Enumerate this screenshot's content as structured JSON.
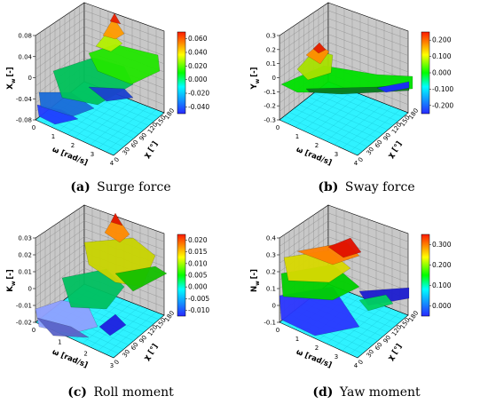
{
  "chart_data": [
    {
      "type": "surface3d",
      "label": "(a)",
      "caption": "Surge force",
      "zlabel_main": "X",
      "zlabel_sub": "w",
      "zlabel_unit": "[-]",
      "xlabel": "ω [rad/s]",
      "ylabel": "χ [°]",
      "zlim": [
        -0.08,
        0.08
      ],
      "zticks": [
        "0.08",
        "0.04",
        "0",
        "-0.04",
        "-0.08"
      ],
      "xticks": [
        "0",
        "1",
        "2",
        "3",
        "4"
      ],
      "yticks": [
        "0",
        "30",
        "60",
        "90",
        "120",
        "150",
        "180"
      ],
      "colorbar_ticks": [
        "0.060",
        "0.040",
        "0.020",
        "0.000",
        "-0.020",
        "-0.040"
      ],
      "clim": [
        -0.05,
        0.065
      ]
    },
    {
      "type": "surface3d",
      "label": "(b)",
      "caption": "Sway force",
      "zlabel_main": "Y",
      "zlabel_sub": "w",
      "zlabel_unit": "[-]",
      "xlabel": "ω [rad/s]",
      "ylabel": "χ [°]",
      "zlim": [
        -0.3,
        0.3
      ],
      "zticks": [
        "0.3",
        "0.2",
        "0.1",
        "0",
        "-0.1",
        "-0.2",
        "-0.3"
      ],
      "xticks": [
        "0",
        "1",
        "2",
        "3",
        "4"
      ],
      "yticks": [
        "0",
        "30",
        "60",
        "90",
        "120",
        "150",
        "180"
      ],
      "colorbar_ticks": [
        "0.200",
        "0.100",
        "0.000",
        "-0.100",
        "-0.200"
      ],
      "clim": [
        -0.25,
        0.27
      ]
    },
    {
      "type": "surface3d",
      "label": "(c)",
      "caption": "Roll moment",
      "zlabel_main": "K",
      "zlabel_sub": "w",
      "zlabel_unit": "[-]",
      "xlabel": "ω [rad/s]",
      "ylabel": "χ [°]",
      "zlim": [
        -0.02,
        0.03
      ],
      "zticks": [
        "0.03",
        "0.02",
        "0.01",
        "0",
        "-0.01",
        "-0.02"
      ],
      "xticks": [
        "0",
        "1",
        "2",
        "3"
      ],
      "yticks": [
        "0",
        "30",
        "60",
        "90",
        "120",
        "150",
        "180"
      ],
      "colorbar_ticks": [
        "0.020",
        "0.015",
        "0.010",
        "0.005",
        "0.000",
        "-0.005",
        "-0.010"
      ],
      "clim": [
        -0.0125,
        0.0215
      ]
    },
    {
      "type": "surface3d",
      "label": "(d)",
      "caption": "Yaw moment",
      "zlabel_main": "N",
      "zlabel_sub": "w",
      "zlabel_unit": "[-]",
      "xlabel": "ω [rad/s]",
      "ylabel": "χ [°]",
      "zlim": [
        -0.1,
        0.4
      ],
      "zticks": [
        "0.4",
        "0.3",
        "0.2",
        "0.1",
        "0",
        "-0.1"
      ],
      "xticks": [
        "0",
        "1",
        "2",
        "3",
        "4"
      ],
      "yticks": [
        "0",
        "30",
        "60",
        "90",
        "120",
        "150",
        "180"
      ],
      "colorbar_ticks": [
        "0.300",
        "0.200",
        "0.100",
        "0.000"
      ],
      "clim": [
        -0.05,
        0.32
      ]
    }
  ],
  "colors": {
    "back_wall": "#c8c8c8",
    "grid": "#8c8c8c",
    "floor": "#2ff2ff",
    "colormap": [
      "#2020ff",
      "#00ff00",
      "#ffff00",
      "#ff0000"
    ]
  }
}
